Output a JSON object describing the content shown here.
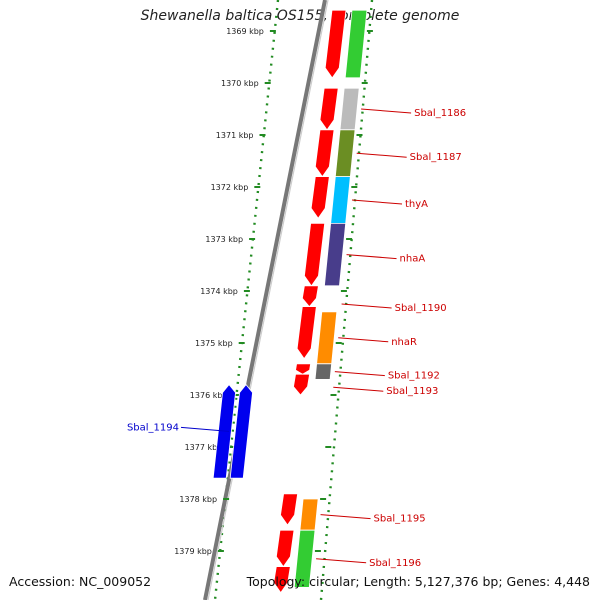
{
  "title": "Shewanella baltica OS155, complete genome",
  "accession": "Accession: NC_009052",
  "topology": "Topology: circular; Length: 5,127,376 bp; Genes: 4,448",
  "ticks": [
    {
      "label": "1369 kbp",
      "kb": 1369
    },
    {
      "label": "1370 kbp",
      "kb": 1370
    },
    {
      "label": "1371 kbp",
      "kb": 1371
    },
    {
      "label": "1372 kbp",
      "kb": 1372
    },
    {
      "label": "1373 kbp",
      "kb": 1373
    },
    {
      "label": "1374 kbp",
      "kb": 1374
    },
    {
      "label": "1375 kbp",
      "kb": 1375
    },
    {
      "label": "1376 kbp",
      "kb": 1376
    },
    {
      "label": "1377 kbp",
      "kb": 1377
    },
    {
      "label": "1378 kbp",
      "kb": 1378
    },
    {
      "label": "1379 kbp",
      "kb": 1379
    }
  ],
  "genes": [
    {
      "kb_start": 1368.6,
      "kb_end": 1369.9,
      "color": "#33cc33"
    },
    {
      "kb_start": 1370.1,
      "kb_end": 1370.9,
      "color": "#bbbbbb",
      "label": "Sbal_1186"
    },
    {
      "kb_start": 1370.9,
      "kb_end": 1371.8,
      "color": "#6b8e23",
      "label": "Sbal_1187"
    },
    {
      "kb_start": 1371.8,
      "kb_end": 1372.7,
      "color": "#00bfff",
      "label": "thyA"
    },
    {
      "kb_start": 1372.7,
      "kb_end": 1373.9,
      "color": "#483d8b",
      "label": "nhaA"
    },
    {
      "kb_start": 1374.1,
      "kb_end": 1374.4,
      "color": "#ffffff",
      "label": "Sbal_1190"
    },
    {
      "kb_start": 1374.4,
      "kb_end": 1375.4,
      "color": "#ff8c00",
      "label": "nhaR"
    },
    {
      "kb_start": 1375.4,
      "kb_end": 1375.7,
      "color": "#666666",
      "label": "Sbal_1192"
    },
    {
      "kb_start": 1375.7,
      "kb_end": 1376.0,
      "color": "#ffffff",
      "label": "Sbal_1193"
    },
    {
      "kb_start": 1378.0,
      "kb_end": 1378.6,
      "color": "#ff8c00",
      "label": "Sbal_1195"
    },
    {
      "kb_start": 1378.6,
      "kb_end": 1379.7,
      "color": "#33cc33",
      "label": "Sbal_1196"
    }
  ],
  "red_features": [
    {
      "kb_start": 1368.6,
      "kb_end": 1369.9
    },
    {
      "kb_start": 1370.1,
      "kb_end": 1370.9
    },
    {
      "kb_start": 1370.9,
      "kb_end": 1371.8
    },
    {
      "kb_start": 1371.8,
      "kb_end": 1372.6
    },
    {
      "kb_start": 1372.7,
      "kb_end": 1373.9
    },
    {
      "kb_start": 1373.9,
      "kb_end": 1374.3
    },
    {
      "kb_start": 1374.3,
      "kb_end": 1375.3
    },
    {
      "kb_start": 1375.4,
      "kb_end": 1375.6
    },
    {
      "kb_start": 1375.6,
      "kb_end": 1376.0
    },
    {
      "kb_start": 1377.9,
      "kb_end": 1378.5
    },
    {
      "kb_start": 1378.6,
      "kb_end": 1379.3
    },
    {
      "kb_start": 1379.3,
      "kb_end": 1379.8
    }
  ],
  "reverse_genes": [
    {
      "kb_start": 1375.8,
      "kb_end": 1377.6,
      "color": "#0000ee",
      "label": "Sbal_1194"
    },
    {
      "kb_start": 1375.8,
      "kb_end": 1377.6,
      "color": "#0000ee"
    }
  ]
}
